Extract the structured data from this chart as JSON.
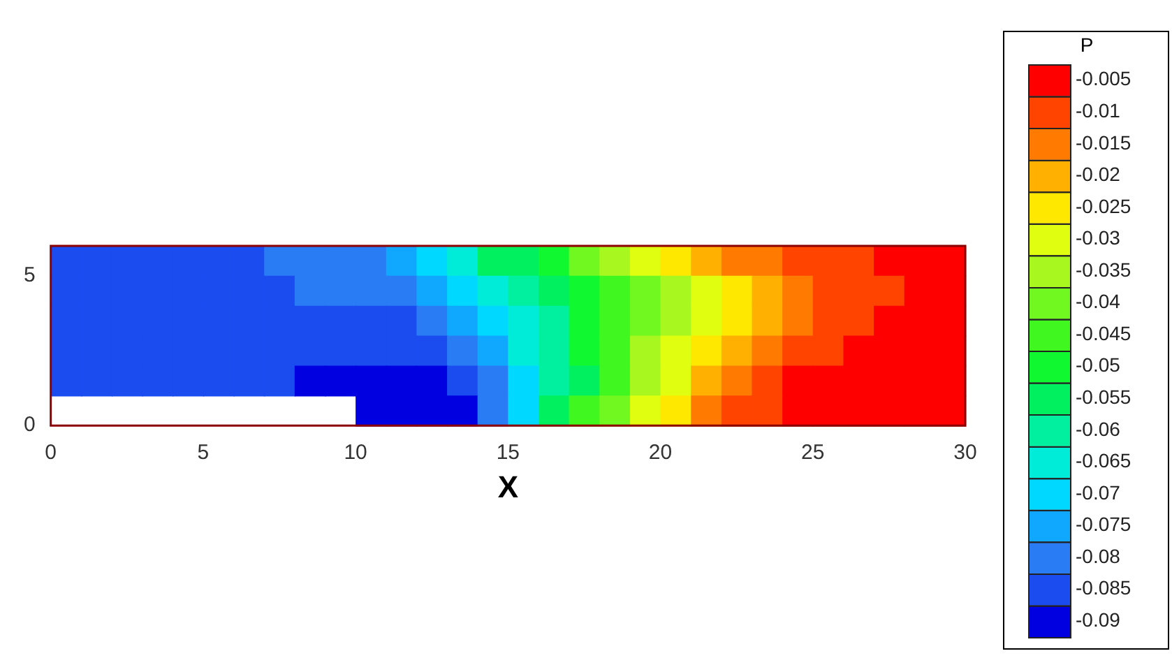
{
  "chart_data": {
    "type": "heatmap",
    "xlabel": "X",
    "clabel": "P",
    "x": [
      0.5,
      1.5,
      2.5,
      3.5,
      4.5,
      5.5,
      6.5,
      7.5,
      8.5,
      9.5,
      10.5,
      11.5,
      12.5,
      13.5,
      14.5,
      15.5,
      16.5,
      17.5,
      18.5,
      19.5,
      20.5,
      21.5,
      22.5,
      23.5,
      24.5,
      25.5,
      26.5,
      27.5,
      28.5,
      29.5
    ],
    "y": [
      5.5,
      4.5,
      3.5,
      2.5,
      1.5,
      0.5
    ],
    "xlim": [
      0,
      30
    ],
    "xticks": [
      0,
      5,
      10,
      15,
      20,
      25,
      30
    ],
    "ylim": [
      0,
      6
    ],
    "yticks": [
      0,
      5
    ],
    "clim": [
      -0.0925,
      -0.0025
    ],
    "cticks": [
      -0.09,
      -0.085,
      -0.08,
      -0.075,
      -0.07,
      -0.065,
      -0.06,
      -0.055,
      -0.05,
      -0.045,
      -0.04,
      -0.035,
      -0.03,
      -0.025,
      -0.02,
      -0.015,
      -0.01,
      -0.005
    ],
    "colors": [
      "#0000e0",
      "#1a4cf0",
      "#2a7cf4",
      "#10a8ff",
      "#00d8ff",
      "#00ecd8",
      "#00f0a0",
      "#00f060",
      "#10f830",
      "#40f820",
      "#70f820",
      "#a8f820",
      "#e0ff10",
      "#ffe800",
      "#ffb000",
      "#ff7a00",
      "#ff4400",
      "#ff0000"
    ],
    "cells": [
      [
        -0.085,
        -0.085,
        -0.085,
        -0.085,
        -0.085,
        -0.085,
        -0.085,
        -0.08,
        -0.08,
        -0.08,
        -0.08,
        -0.075,
        -0.07,
        -0.065,
        -0.055,
        -0.055,
        -0.05,
        -0.04,
        -0.035,
        -0.03,
        -0.025,
        -0.02,
        -0.015,
        -0.015,
        -0.01,
        -0.01,
        -0.01,
        -0.005,
        -0.005,
        -0.005
      ],
      [
        -0.085,
        -0.085,
        -0.085,
        -0.085,
        -0.085,
        -0.085,
        -0.085,
        -0.085,
        -0.08,
        -0.08,
        -0.08,
        -0.08,
        -0.075,
        -0.07,
        -0.065,
        -0.06,
        -0.055,
        -0.05,
        -0.045,
        -0.04,
        -0.035,
        -0.03,
        -0.025,
        -0.02,
        -0.015,
        -0.01,
        -0.01,
        -0.01,
        -0.005,
        -0.005
      ],
      [
        -0.085,
        -0.085,
        -0.085,
        -0.085,
        -0.085,
        -0.085,
        -0.085,
        -0.085,
        -0.085,
        -0.085,
        -0.085,
        -0.085,
        -0.08,
        -0.075,
        -0.07,
        -0.065,
        -0.06,
        -0.05,
        -0.045,
        -0.04,
        -0.035,
        -0.03,
        -0.025,
        -0.02,
        -0.015,
        -0.01,
        -0.01,
        -0.005,
        -0.005,
        -0.005
      ],
      [
        -0.085,
        -0.085,
        -0.085,
        -0.085,
        -0.085,
        -0.085,
        -0.085,
        -0.085,
        -0.085,
        -0.085,
        -0.085,
        -0.085,
        -0.085,
        -0.08,
        -0.075,
        -0.065,
        -0.06,
        -0.05,
        -0.045,
        -0.035,
        -0.03,
        -0.025,
        -0.02,
        -0.015,
        -0.01,
        -0.01,
        -0.005,
        -0.005,
        -0.005,
        -0.005
      ],
      [
        -0.085,
        -0.085,
        -0.085,
        -0.085,
        -0.085,
        -0.085,
        -0.085,
        -0.085,
        -0.09,
        -0.09,
        -0.09,
        -0.09,
        -0.09,
        -0.085,
        -0.08,
        -0.07,
        -0.06,
        -0.055,
        -0.045,
        -0.035,
        -0.03,
        -0.02,
        -0.015,
        -0.01,
        -0.005,
        -0.005,
        -0.005,
        -0.005,
        -0.005,
        -0.005
      ],
      [
        null,
        null,
        null,
        null,
        null,
        null,
        null,
        null,
        null,
        null,
        -0.09,
        -0.09,
        -0.09,
        -0.09,
        -0.08,
        -0.07,
        -0.055,
        -0.045,
        -0.04,
        -0.03,
        -0.025,
        -0.015,
        -0.01,
        -0.01,
        -0.005,
        -0.005,
        -0.005,
        -0.005,
        -0.005,
        -0.005
      ]
    ]
  }
}
